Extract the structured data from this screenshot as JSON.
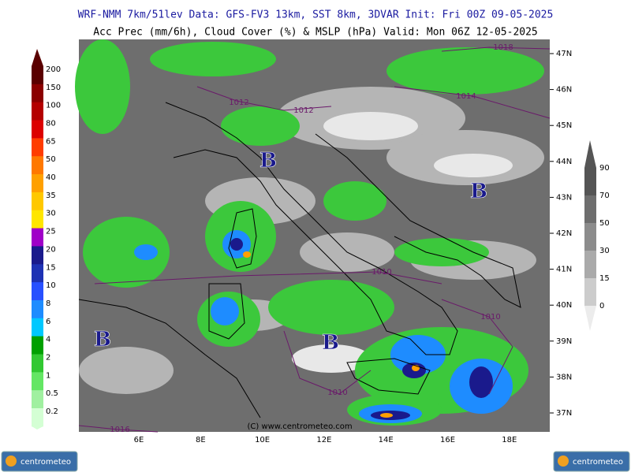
{
  "header": {
    "line1": "WRF-NMM 7km/51lev  Data: GFS-FV3 13km, SST 8km, 3DVAR  Init: Fri 00Z 09-05-2025",
    "line2": "Acc Prec (mm/6h), Cloud Cover (%) & MSLP (hPa)  Valid: Mon 06Z 12-05-2025"
  },
  "precip_legend": {
    "labels": [
      "200",
      "150",
      "100",
      "80",
      "65",
      "50",
      "40",
      "35",
      "30",
      "25",
      "20",
      "15",
      "10",
      "8",
      "6",
      "4",
      "2",
      "1",
      "0.5",
      "0.2"
    ],
    "colors": [
      "#5a0000",
      "#8b0000",
      "#b40000",
      "#dc0000",
      "#ff3c00",
      "#ff7800",
      "#ffa000",
      "#ffc800",
      "#ffe600",
      "#a000c8",
      "#1a1a8c",
      "#1e32b4",
      "#2850ff",
      "#1e8cff",
      "#00c8ff",
      "#00a000",
      "#32c832",
      "#64e664",
      "#a0f0a0",
      "#d4ffd4"
    ]
  },
  "cloud_legend": {
    "labels": [
      "90",
      "70",
      "50",
      "30",
      "15",
      "0"
    ],
    "colors": [
      "#555555",
      "#6e6e6e",
      "#8c8c8c",
      "#aaaaaa",
      "#cccccc",
      "#ececec"
    ]
  },
  "map": {
    "lon_labels": [
      "6E",
      "8E",
      "10E",
      "12E",
      "14E",
      "16E",
      "18E"
    ],
    "lat_labels": [
      "47N",
      "46N",
      "45N",
      "44N",
      "43N",
      "42N",
      "41N",
      "40N",
      "39N",
      "38N",
      "37N"
    ],
    "isobar_labels": [
      "1018",
      "1014",
      "1012",
      "1012",
      "1010",
      "1010",
      "1010",
      "1016"
    ],
    "lows": [
      "B",
      "B",
      "B",
      "B"
    ],
    "copyright": "(C) www.centrometeo.com"
  },
  "logos": {
    "left": "centrometeo",
    "right": "centrometeo"
  }
}
